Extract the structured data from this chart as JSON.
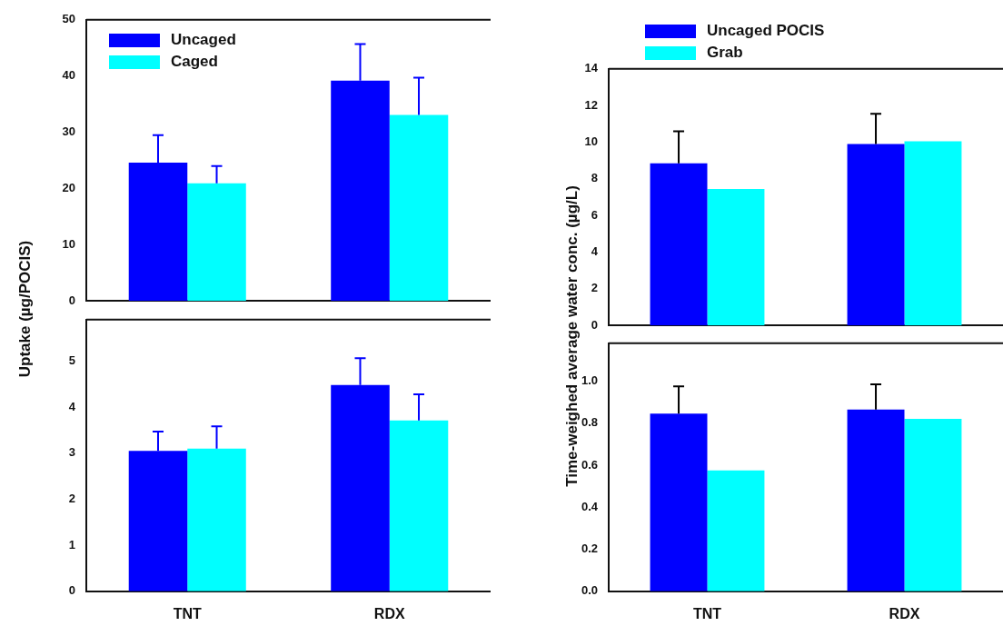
{
  "chart_data": [
    {
      "type": "bar",
      "ylabel": "Uptake (µg/POCIS)",
      "categories": [
        null,
        null
      ],
      "ylim": [
        0,
        50
      ],
      "yticks": [
        0,
        10,
        20,
        30,
        40,
        50
      ],
      "tick_labels": "y",
      "legend": "top left",
      "series": [
        {
          "name": "Uncaged",
          "color": "#0000ff",
          "values": [
            24.6,
            39.2
          ],
          "errors": [
            [
              24.6,
              29.5
            ],
            [
              39.2,
              45.7
            ]
          ]
        },
        {
          "name": "Caged",
          "color": "#00ffff",
          "values": [
            20.9,
            33.1
          ],
          "errors": [
            [
              20.9,
              24.0
            ],
            [
              33.1,
              39.7
            ]
          ]
        }
      ]
    },
    {
      "type": "bar",
      "categories": [
        "TNT",
        "RDX"
      ],
      "ylim": [
        0,
        5.9
      ],
      "yticks": [
        0,
        1,
        2,
        3,
        4,
        5
      ],
      "series": [
        {
          "color": "#0000ff",
          "values": [
            3.05,
            4.48
          ],
          "errors": [
            [
              3.05,
              3.47
            ],
            [
              4.48,
              5.06
            ]
          ]
        },
        {
          "color": "#00ffff",
          "values": [
            3.1,
            3.71
          ],
          "errors": [
            [
              3.1,
              3.58
            ],
            [
              3.71,
              4.28
            ]
          ]
        }
      ]
    },
    {
      "type": "bar",
      "ylabel": "Time-weighed average water conc. (µg/L)",
      "categories": [
        null,
        null
      ],
      "ylim": [
        0,
        14
      ],
      "yticks": [
        0,
        2,
        4,
        6,
        8,
        10,
        12,
        14
      ],
      "tick_labels": "y",
      "legend": "top",
      "series": [
        {
          "name": "Uncaged POCIS",
          "color": "#0000ff",
          "values": [
            8.85,
            9.9
          ],
          "errors": [
            [
              8.85,
              10.6
            ],
            [
              9.9,
              11.55
            ]
          ]
        },
        {
          "name": "Grab",
          "color": "#00ffff",
          "values": [
            7.45,
            10.05
          ]
        }
      ]
    },
    {
      "type": "bar",
      "categories": [
        "TNT",
        "RDX"
      ],
      "ylim": [
        0,
        1.18
      ],
      "yticks": [
        {
          "value": 0,
          "label": "0.0"
        },
        0.2,
        0.4,
        0.6,
        0.8,
        {
          "value": 1,
          "label": "1.0"
        }
      ],
      "series": [
        {
          "color": "#0000ff",
          "values": [
            0.845,
            0.865
          ],
          "errors": [
            [
              0.845,
              0.975
            ],
            [
              0.865,
              0.985
            ]
          ]
        },
        {
          "color": "#00ffff",
          "values": [
            0.575,
            0.82
          ]
        }
      ]
    }
  ]
}
